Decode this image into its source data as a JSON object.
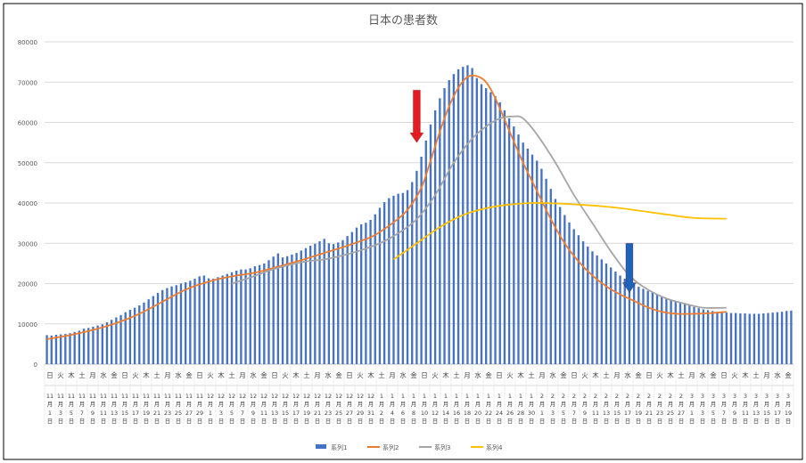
{
  "chart_data": {
    "type": "bar",
    "title": "日本の患者数",
    "xlabel": "",
    "ylabel": "",
    "ylim": [
      0,
      80000
    ],
    "y_ticks": [
      "0",
      "10000",
      "20000",
      "30000",
      "40000",
      "50000",
      "60000",
      "70000",
      "80000"
    ],
    "grid": true,
    "legend_position": "bottom",
    "weekday_labels": [
      "日",
      "火",
      "木",
      "土",
      "月",
      "水",
      "金",
      "日",
      "火",
      "木",
      "土",
      "月",
      "水",
      "金",
      "日",
      "火",
      "木",
      "土",
      "月",
      "水",
      "金",
      "日",
      "火",
      "木",
      "土",
      "月",
      "水",
      "金",
      "日",
      "火",
      "木",
      "土",
      "月",
      "水",
      "金",
      "日",
      "火",
      "木",
      "土",
      "月",
      "水",
      "金",
      "日",
      "火",
      "木",
      "土",
      "月",
      "水",
      "金",
      "日",
      "火",
      "木",
      "土",
      "月",
      "水",
      "金",
      "日",
      "火",
      "木",
      "土",
      "月",
      "水",
      "金",
      "日",
      "火",
      "木",
      "土",
      "月",
      "水",
      "金"
    ],
    "date_labels": [
      {
        "month": "11",
        "day": "1"
      },
      {
        "month": "11",
        "day": "3"
      },
      {
        "month": "11",
        "day": "5"
      },
      {
        "month": "11",
        "day": "7"
      },
      {
        "month": "11",
        "day": "9"
      },
      {
        "month": "11",
        "day": "11"
      },
      {
        "month": "11",
        "day": "13"
      },
      {
        "month": "11",
        "day": "15"
      },
      {
        "month": "11",
        "day": "17"
      },
      {
        "month": "11",
        "day": "19"
      },
      {
        "month": "11",
        "day": "21"
      },
      {
        "month": "11",
        "day": "23"
      },
      {
        "month": "11",
        "day": "25"
      },
      {
        "month": "11",
        "day": "27"
      },
      {
        "month": "11",
        "day": "29"
      },
      {
        "month": "12",
        "day": "1"
      },
      {
        "month": "12",
        "day": "3"
      },
      {
        "month": "12",
        "day": "5"
      },
      {
        "month": "12",
        "day": "7"
      },
      {
        "month": "12",
        "day": "9"
      },
      {
        "month": "12",
        "day": "11"
      },
      {
        "month": "12",
        "day": "13"
      },
      {
        "month": "12",
        "day": "15"
      },
      {
        "month": "12",
        "day": "17"
      },
      {
        "month": "12",
        "day": "19"
      },
      {
        "month": "12",
        "day": "21"
      },
      {
        "month": "12",
        "day": "23"
      },
      {
        "month": "12",
        "day": "25"
      },
      {
        "month": "12",
        "day": "27"
      },
      {
        "month": "12",
        "day": "29"
      },
      {
        "month": "12",
        "day": "31"
      },
      {
        "month": "1",
        "day": "2"
      },
      {
        "month": "1",
        "day": "4"
      },
      {
        "month": "1",
        "day": "6"
      },
      {
        "month": "1",
        "day": "8"
      },
      {
        "month": "1",
        "day": "10"
      },
      {
        "month": "1",
        "day": "12"
      },
      {
        "month": "1",
        "day": "14"
      },
      {
        "month": "1",
        "day": "16"
      },
      {
        "month": "1",
        "day": "18"
      },
      {
        "month": "1",
        "day": "20"
      },
      {
        "month": "1",
        "day": "22"
      },
      {
        "month": "1",
        "day": "24"
      },
      {
        "month": "1",
        "day": "26"
      },
      {
        "month": "1",
        "day": "28"
      },
      {
        "month": "1",
        "day": "30"
      },
      {
        "month": "2",
        "day": "1"
      },
      {
        "month": "2",
        "day": "3"
      },
      {
        "month": "2",
        "day": "5"
      },
      {
        "month": "2",
        "day": "7"
      },
      {
        "month": "2",
        "day": "9"
      },
      {
        "month": "2",
        "day": "11"
      },
      {
        "month": "2",
        "day": "13"
      },
      {
        "month": "2",
        "day": "15"
      },
      {
        "month": "2",
        "day": "17"
      },
      {
        "month": "2",
        "day": "19"
      },
      {
        "month": "2",
        "day": "21"
      },
      {
        "month": "2",
        "day": "23"
      },
      {
        "month": "2",
        "day": "25"
      },
      {
        "month": "2",
        "day": "27"
      },
      {
        "month": "3",
        "day": "1"
      },
      {
        "month": "3",
        "day": "3"
      },
      {
        "month": "3",
        "day": "5"
      },
      {
        "month": "3",
        "day": "7"
      },
      {
        "month": "3",
        "day": "9"
      },
      {
        "month": "3",
        "day": "11"
      },
      {
        "month": "3",
        "day": "13"
      },
      {
        "month": "3",
        "day": "15"
      },
      {
        "month": "3",
        "day": "17"
      },
      {
        "month": "3",
        "day": "19"
      }
    ],
    "month_char": "月",
    "day_char": "日",
    "series": [
      {
        "name": "系列1",
        "type": "bar",
        "color": "#4472C4",
        "values": [
          7200,
          7100,
          7300,
          7400,
          7500,
          7700,
          8000,
          8300,
          8800,
          9000,
          9300,
          9600,
          9900,
          10400,
          11000,
          11600,
          12200,
          12900,
          13500,
          14000,
          14600,
          15300,
          16100,
          16900,
          17700,
          18400,
          18900,
          19300,
          19600,
          20000,
          20300,
          20700,
          21200,
          21800,
          22000,
          21300,
          21200,
          21600,
          22000,
          22400,
          22800,
          23200,
          23500,
          23500,
          23800,
          24300,
          24600,
          25000,
          25800,
          26700,
          27500,
          26500,
          26800,
          27200,
          27600,
          28200,
          28800,
          29400,
          29900,
          30500,
          31100,
          30000,
          29800,
          30200,
          30800,
          31800,
          32800,
          33900,
          34700,
          35100,
          35800,
          37200,
          38800,
          40200,
          41200,
          41800,
          42300,
          42500,
          43200,
          45200,
          48000,
          51500,
          55500,
          59500,
          63000,
          66000,
          68500,
          70500,
          72000,
          73200,
          73800,
          74200,
          73500,
          71000,
          69500,
          68500,
          67500,
          66500,
          65000,
          63000,
          61000,
          59000,
          57000,
          55000,
          53500,
          52000,
          50500,
          48500,
          46000,
          43500,
          41000,
          39000,
          37000,
          35200,
          33500,
          32000,
          30500,
          29200,
          28000,
          27000,
          26000,
          25000,
          24000,
          23000,
          22000,
          21200,
          20500,
          19800,
          19200,
          18700,
          18200,
          17800,
          17300,
          16800,
          16300,
          15800,
          15500,
          15300,
          15000,
          14600,
          14200,
          13900,
          13600,
          13400,
          13200,
          13000,
          12900,
          12800,
          12700,
          12700,
          12600,
          12600,
          12500,
          12500,
          12500,
          12600,
          12700,
          12800,
          12900,
          13000,
          13200,
          13300
        ]
      },
      {
        "name": "系列2",
        "type": "line",
        "color": "#ED7D31",
        "points": [
          [
            0,
            6200
          ],
          [
            5,
            7200
          ],
          [
            10,
            8500
          ],
          [
            15,
            10200
          ],
          [
            20,
            12500
          ],
          [
            25,
            15500
          ],
          [
            30,
            18500
          ],
          [
            35,
            20500
          ],
          [
            40,
            21800
          ],
          [
            45,
            22700
          ],
          [
            50,
            24200
          ],
          [
            55,
            25800
          ],
          [
            60,
            27600
          ],
          [
            65,
            29400
          ],
          [
            70,
            31500
          ],
          [
            72,
            32800
          ],
          [
            75,
            35200
          ],
          [
            78,
            38300
          ],
          [
            81,
            43800
          ],
          [
            83,
            50500
          ],
          [
            85,
            57700
          ],
          [
            87,
            64000
          ],
          [
            89,
            68600
          ],
          [
            91,
            71300
          ],
          [
            93,
            71500
          ],
          [
            95,
            70000
          ],
          [
            97,
            66000
          ],
          [
            100,
            58000
          ],
          [
            103,
            50000
          ],
          [
            106,
            43000
          ],
          [
            109,
            36000
          ],
          [
            112,
            30000
          ],
          [
            115,
            25500
          ],
          [
            118,
            22000
          ],
          [
            121,
            19300
          ],
          [
            124,
            17300
          ],
          [
            127,
            15700
          ],
          [
            130,
            14100
          ],
          [
            133,
            13000
          ],
          [
            136,
            12500
          ],
          [
            140,
            12500
          ],
          [
            144,
            12700
          ],
          [
            147,
            13000
          ]
        ]
      },
      {
        "name": "系列3",
        "type": "line",
        "color": "#A5A5A5",
        "points": [
          [
            40,
            20000
          ],
          [
            44,
            21500
          ],
          [
            48,
            23200
          ],
          [
            52,
            24500
          ],
          [
            56,
            25500
          ],
          [
            60,
            26000
          ],
          [
            64,
            27000
          ],
          [
            68,
            28300
          ],
          [
            72,
            30000
          ],
          [
            76,
            32500
          ],
          [
            80,
            36000
          ],
          [
            84,
            42000
          ],
          [
            88,
            50000
          ],
          [
            92,
            56000
          ],
          [
            95,
            59000
          ],
          [
            98,
            61000
          ],
          [
            101,
            61500
          ],
          [
            103,
            61000
          ],
          [
            106,
            57000
          ],
          [
            110,
            50000
          ],
          [
            114,
            42000
          ],
          [
            118,
            35000
          ],
          [
            122,
            28000
          ],
          [
            126,
            22000
          ],
          [
            130,
            18500
          ],
          [
            134,
            16300
          ],
          [
            138,
            15000
          ],
          [
            142,
            14000
          ],
          [
            147,
            14000
          ]
        ]
      },
      {
        "name": "系列4",
        "type": "line",
        "color": "#FFC000",
        "points": [
          [
            75,
            26000
          ],
          [
            80,
            30000
          ],
          [
            85,
            34000
          ],
          [
            90,
            37000
          ],
          [
            95,
            38700
          ],
          [
            100,
            39600
          ],
          [
            105,
            40000
          ],
          [
            110,
            39900
          ],
          [
            115,
            39600
          ],
          [
            120,
            39200
          ],
          [
            125,
            38600
          ],
          [
            130,
            37800
          ],
          [
            135,
            37000
          ],
          [
            140,
            36300
          ],
          [
            147,
            36100
          ]
        ]
      }
    ],
    "annotations": [
      {
        "name": "red-down-arrow",
        "color": "#E31B23",
        "at_index": 80,
        "from_value": 68000,
        "to_value": 55000
      },
      {
        "name": "blue-down-arrow",
        "color": "#1F63B8",
        "at_index": 126,
        "from_value": 30000,
        "to_value": 17800
      }
    ]
  }
}
